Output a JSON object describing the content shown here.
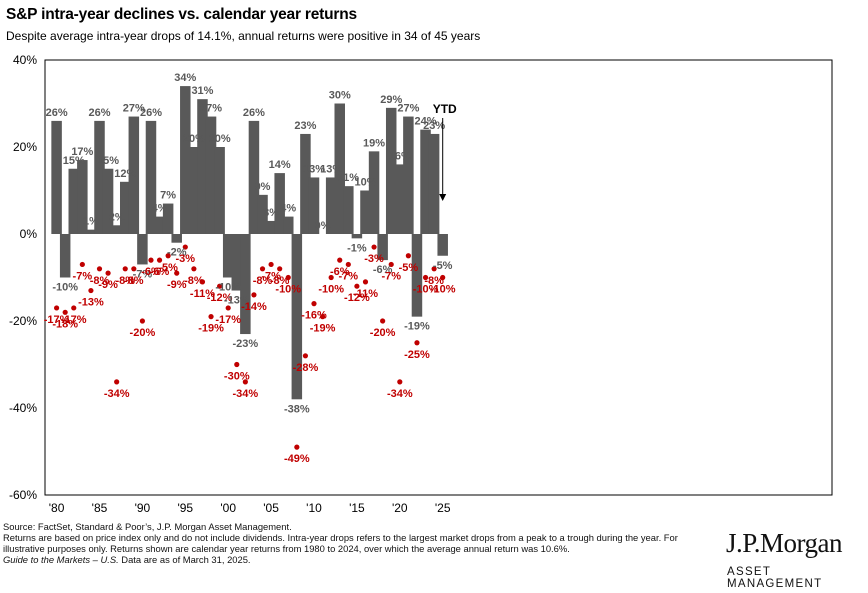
{
  "header": {
    "title": "S&P intra-year declines vs. calendar year returns",
    "subtitle": "Despite average intra-year drops of 14.1%, annual returns were positive in 34 of 45 years"
  },
  "chart_data": {
    "type": "bar",
    "x": [
      1980,
      1981,
      1982,
      1983,
      1984,
      1985,
      1986,
      1987,
      1988,
      1989,
      1990,
      1991,
      1992,
      1993,
      1994,
      1995,
      1996,
      1997,
      1998,
      1999,
      2000,
      2001,
      2002,
      2003,
      2004,
      2005,
      2006,
      2007,
      2008,
      2009,
      2010,
      2011,
      2012,
      2013,
      2014,
      2015,
      2016,
      2017,
      2018,
      2019,
      2020,
      2021,
      2022,
      2023,
      2024,
      2025
    ],
    "xtick_labels": [
      "'80",
      "'85",
      "'90",
      "'95",
      "'00",
      "'05",
      "'10",
      "'15",
      "'20",
      "'25"
    ],
    "xtick_values": [
      1980,
      1985,
      1990,
      1995,
      2000,
      2005,
      2010,
      2015,
      2020,
      2025
    ],
    "ylim": [
      -60,
      40
    ],
    "yticks": [
      40,
      20,
      0,
      -20,
      -40,
      -60
    ],
    "ytick_labels": [
      "40%",
      "20%",
      "0%",
      "-20%",
      "-40%",
      "-60%"
    ],
    "series": [
      {
        "values": [
          26,
          -10,
          15,
          17,
          1,
          26,
          15,
          2,
          12,
          27,
          -7,
          26,
          4,
          7,
          -2,
          34,
          20,
          31,
          27,
          20,
          -10,
          -13,
          -23,
          26,
          9,
          3,
          14,
          4,
          -38,
          23,
          13,
          0,
          13,
          30,
          11,
          -1,
          10,
          19,
          -6,
          29,
          16,
          27,
          -19,
          24,
          23,
          -5
        ],
        "labels": [
          "26%",
          "-10%",
          "15%",
          "17%",
          "1%",
          "26%",
          "15%",
          "2%",
          "12%",
          "27%",
          "-7%",
          "26%",
          "4%",
          "7%",
          "-2%",
          "34%",
          "20%",
          "31%",
          "27%",
          "20%",
          "-10%",
          "-13%",
          "-23%",
          "26%",
          "9%",
          "3%",
          "14%",
          "4%",
          "-38%",
          "23%",
          "13%",
          "0%",
          "13%",
          "30%",
          "11%",
          "-1%",
          "10%",
          "19%",
          "-6%",
          "29%",
          "16%",
          "27%",
          "-19%",
          "24%",
          "23%",
          "-5%"
        ],
        "color": "#595959"
      },
      {
        "values": [
          -17,
          -18,
          -17,
          -7,
          -13,
          -8,
          -9,
          -34,
          -8,
          -8,
          -20,
          -6,
          -6,
          -5,
          -9,
          -3,
          -8,
          -11,
          -19,
          -12,
          -17,
          -30,
          -34,
          -14,
          -8,
          -7,
          -8,
          -10,
          -49,
          -28,
          -16,
          -19,
          -10,
          -6,
          -7,
          -12,
          -11,
          -3,
          -20,
          -7,
          -34,
          -5,
          -25,
          -10,
          -8,
          -10
        ],
        "labels": [
          "-17%",
          "-18%",
          "-17%",
          "-7%",
          "-13%",
          "-8%",
          "-9%",
          "-34%",
          "-8%",
          "-8%",
          "-20%",
          "-6%",
          "-6%",
          "-5%",
          "-9%",
          "-3%",
          "-8%",
          "-11%",
          "-19%",
          "-12%",
          "-17%",
          "-30%",
          "-34%",
          "-14%",
          "-8%",
          "-7%",
          "-8%",
          "-10%",
          "-49%",
          "-28%",
          "-16%",
          "-19%",
          "-10%",
          "-6%",
          "-7%",
          "-12%",
          "-11%",
          "-3%",
          "-20%",
          "-7%",
          "-34%",
          "-5%",
          "-25%",
          "-10%",
          "-8%",
          "-10%"
        ],
        "color": "#c00000"
      }
    ],
    "annotation": "YTD",
    "grid": false
  },
  "footnote": {
    "line1": "Source: FactSet, Standard & Poor’s, J.P. Morgan Asset Management.",
    "line2": "Returns are based on price index only and do not include dividends. Intra-year drops refers to the largest market drops from a peak to a trough during the year. For illustrative purposes only. Returns shown are calendar year returns from 1980 to 2024, over which the average annual return was 10.6%.",
    "line3_italic": "Guide to the Markets – U.S.",
    "line3_rest": " Data are as of March 31, 2025."
  },
  "brand": {
    "name": "J.P.Morgan",
    "sub": "ASSET MANAGEMENT"
  }
}
